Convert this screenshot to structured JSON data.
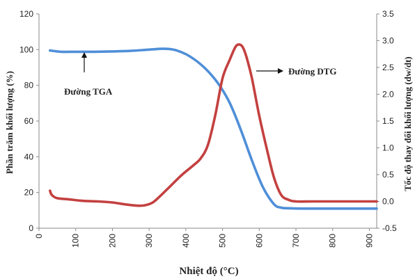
{
  "chart_data": {
    "type": "line",
    "xlabel": "Nhiệt độ (°C)",
    "ylabel_left": "Phần trăm khối lượng (%)",
    "ylabel_right": "Tốc độ thay đổi khối lượng (dw/dt)",
    "xlim": [
      0,
      920
    ],
    "ylim_left": [
      0,
      120
    ],
    "ylim_right": [
      -0.5,
      3.5
    ],
    "x_ticks": [
      0,
      100,
      200,
      300,
      400,
      500,
      600,
      700,
      800,
      900
    ],
    "y_left_ticks": [
      0,
      20,
      40,
      60,
      80,
      100,
      120
    ],
    "y_right_ticks": [
      "-0.5",
      "0.0",
      "0.5",
      "1.0",
      "1.5",
      "2.0",
      "2.5",
      "3.0",
      "3.5"
    ],
    "grid": false,
    "series": [
      {
        "name": "Đường TGA",
        "axis": "left",
        "color": "#4f8fd8",
        "x": [
          30,
          60,
          100,
          150,
          200,
          250,
          300,
          340,
          370,
          400,
          430,
          460,
          490,
          520,
          550,
          580,
          610,
          640,
          660,
          680,
          720,
          800,
          900,
          920
        ],
        "y": [
          99.5,
          98.8,
          98.8,
          98.8,
          99,
          99.3,
          100,
          100.5,
          99.8,
          97.5,
          93.5,
          88,
          80.5,
          70,
          55,
          38,
          23,
          13.5,
          11.5,
          11.2,
          11,
          11,
          11,
          11
        ]
      },
      {
        "name": "Đường DTG",
        "axis": "right",
        "color": "#c44040",
        "x": [
          30,
          35,
          50,
          80,
          120,
          160,
          200,
          240,
          270,
          290,
          310,
          330,
          360,
          390,
          420,
          440,
          460,
          480,
          500,
          520,
          535,
          545,
          555,
          565,
          580,
          600,
          620,
          640,
          660,
          680,
          700,
          750,
          800,
          850,
          900,
          920
        ],
        "y": [
          0.2,
          0.12,
          0.06,
          0.04,
          0.01,
          0.0,
          -0.02,
          -0.06,
          -0.08,
          -0.07,
          -0.02,
          0.1,
          0.3,
          0.5,
          0.67,
          0.8,
          1.05,
          1.6,
          2.3,
          2.65,
          2.88,
          2.93,
          2.88,
          2.7,
          2.3,
          1.6,
          1.0,
          0.45,
          0.12,
          0.03,
          0.0,
          0.0,
          0.0,
          0.0,
          0.0,
          0.0
        ]
      }
    ],
    "annotations": [
      {
        "text": "Đường TGA",
        "points_to": "TGA"
      },
      {
        "text": "Đường DTG",
        "points_to": "DTG"
      }
    ]
  }
}
